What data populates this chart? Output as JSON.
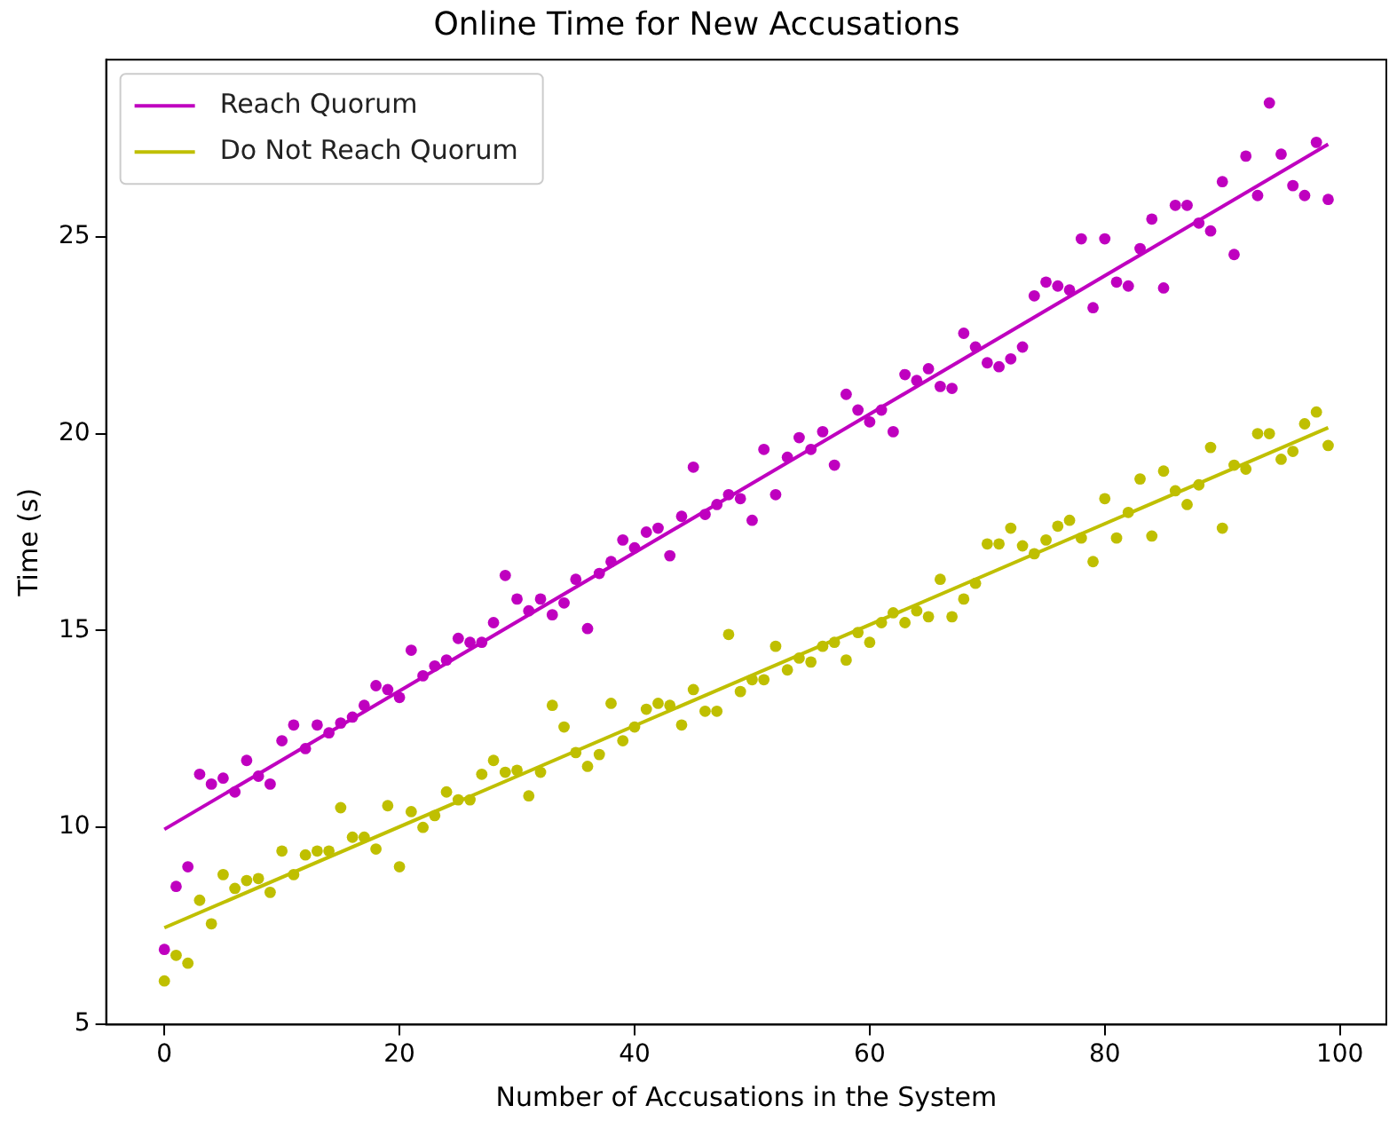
{
  "chart_data": {
    "type": "scatter",
    "title": "Online Time for New Accusations",
    "xlabel": "Number of Accusations in the System",
    "ylabel": "Time (s)",
    "xlim": [
      -4.95,
      103.95
    ],
    "xticks": [
      0,
      20,
      40,
      60,
      80,
      100
    ],
    "ylim": [
      4.99,
      29.5
    ],
    "yticks": [
      5,
      10,
      15,
      20,
      25
    ],
    "grid": false,
    "legend": "top left",
    "series": [
      {
        "marker": "circle",
        "color": "#bf00bf",
        "x": [
          0,
          1,
          2,
          3,
          4,
          5,
          6,
          7,
          8,
          9,
          10,
          11,
          12,
          13,
          14,
          15,
          16,
          17,
          18,
          19,
          20,
          21,
          22,
          23,
          24,
          25,
          26,
          27,
          28,
          29,
          30,
          31,
          32,
          33,
          34,
          35,
          36,
          37,
          38,
          39,
          40,
          41,
          42,
          43,
          44,
          45,
          46,
          47,
          48,
          49,
          50,
          51,
          52,
          53,
          54,
          55,
          56,
          57,
          58,
          59,
          60,
          61,
          62,
          63,
          64,
          65,
          66,
          67,
          68,
          69,
          70,
          71,
          72,
          73,
          74,
          75,
          76,
          77,
          78,
          79,
          80,
          81,
          82,
          83,
          84,
          85,
          86,
          87,
          88,
          89,
          90,
          91,
          92,
          93,
          94,
          95,
          96,
          97,
          98,
          99
        ],
        "values": [
          6.9,
          8.5,
          9.0,
          11.35,
          11.1,
          11.25,
          10.9,
          11.7,
          11.3,
          11.1,
          12.2,
          12.6,
          12.0,
          12.6,
          12.4,
          12.65,
          12.8,
          13.1,
          13.6,
          13.5,
          13.3,
          14.5,
          13.85,
          14.1,
          14.25,
          14.8,
          14.7,
          14.7,
          15.2,
          16.4,
          15.8,
          15.5,
          15.8,
          15.4,
          15.7,
          16.3,
          15.05,
          16.45,
          16.75,
          17.3,
          17.1,
          17.5,
          17.6,
          16.9,
          17.9,
          19.15,
          17.95,
          18.2,
          18.45,
          18.35,
          17.8,
          19.6,
          18.45,
          19.4,
          19.9,
          19.6,
          20.05,
          19.2,
          21.0,
          20.6,
          20.3,
          20.6,
          20.05,
          21.5,
          21.35,
          21.65,
          21.2,
          21.15,
          22.55,
          22.2,
          21.8,
          21.7,
          21.9,
          22.2,
          23.5,
          23.85,
          23.75,
          23.65,
          24.95,
          23.2,
          24.95,
          23.85,
          23.75,
          24.7,
          25.45,
          23.7,
          25.8,
          25.8,
          25.35,
          25.15,
          26.4,
          24.55,
          27.05,
          26.05,
          28.4,
          27.1,
          26.3,
          26.05,
          27.4,
          25.95
        ]
      },
      {
        "marker": "circle",
        "color": "#bfbf00",
        "x": [
          0,
          1,
          2,
          3,
          4,
          5,
          6,
          7,
          8,
          9,
          10,
          11,
          12,
          13,
          14,
          15,
          16,
          17,
          18,
          19,
          20,
          21,
          22,
          23,
          24,
          25,
          26,
          27,
          28,
          29,
          30,
          31,
          32,
          33,
          34,
          35,
          36,
          37,
          38,
          39,
          40,
          41,
          42,
          43,
          44,
          45,
          46,
          47,
          48,
          49,
          50,
          51,
          52,
          53,
          54,
          55,
          56,
          57,
          58,
          59,
          60,
          61,
          62,
          63,
          64,
          65,
          66,
          67,
          68,
          69,
          70,
          71,
          72,
          73,
          74,
          75,
          76,
          77,
          78,
          79,
          80,
          81,
          82,
          83,
          84,
          85,
          86,
          87,
          88,
          89,
          90,
          91,
          92,
          93,
          94,
          95,
          96,
          97,
          98,
          99
        ],
        "values": [
          6.1,
          6.75,
          6.55,
          8.15,
          7.55,
          8.8,
          8.45,
          8.65,
          8.7,
          8.35,
          9.4,
          8.8,
          9.3,
          9.4,
          9.4,
          10.5,
          9.75,
          9.75,
          9.45,
          10.55,
          9.0,
          10.4,
          10.0,
          10.3,
          10.9,
          10.7,
          10.7,
          11.35,
          11.7,
          11.4,
          11.45,
          10.8,
          11.4,
          13.1,
          12.55,
          11.9,
          11.55,
          11.85,
          13.15,
          12.2,
          12.55,
          13.0,
          13.15,
          13.1,
          12.6,
          13.5,
          12.95,
          12.95,
          14.9,
          13.45,
          13.75,
          13.75,
          14.6,
          14.0,
          14.3,
          14.2,
          14.6,
          14.7,
          14.25,
          14.95,
          14.7,
          15.2,
          15.45,
          15.2,
          15.5,
          15.35,
          16.3,
          15.35,
          15.8,
          16.2,
          17.2,
          17.2,
          17.6,
          17.15,
          16.95,
          17.3,
          17.65,
          17.8,
          17.35,
          16.75,
          18.35,
          17.35,
          18.0,
          18.85,
          17.4,
          19.05,
          18.55,
          18.2,
          18.7,
          19.65,
          17.6,
          19.2,
          19.1,
          20.0,
          20.0,
          19.35,
          19.55,
          20.25,
          20.55,
          19.7
        ]
      },
      {
        "type": "line",
        "marker": "none",
        "name": "Reach Quorum",
        "color": "#bf00bf",
        "x": [
          0,
          99
        ],
        "values": [
          9.95,
          27.35
        ]
      },
      {
        "type": "line",
        "marker": "none",
        "name": "Do Not Reach Quorum",
        "color": "#bfbf00",
        "x": [
          0,
          99
        ],
        "values": [
          7.45,
          20.15
        ]
      }
    ]
  }
}
